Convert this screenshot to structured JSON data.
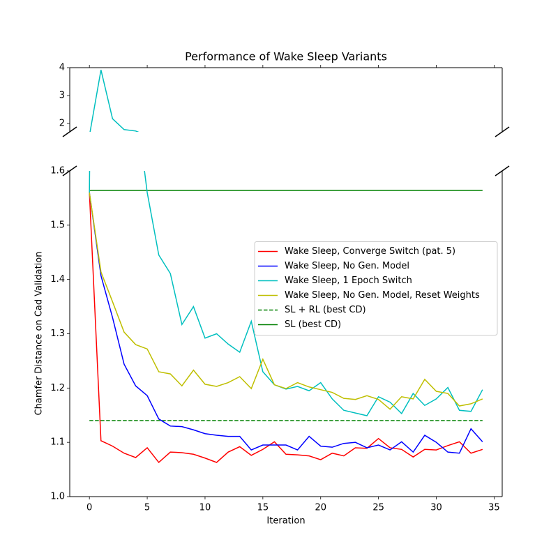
{
  "chart_data": {
    "type": "line",
    "title": "Performance of Wake Sleep Variants",
    "xlabel": "Iteration",
    "ylabel": "Chamfer Distance on Cad Validation",
    "x": [
      0,
      1,
      2,
      3,
      4,
      5,
      6,
      7,
      8,
      9,
      10,
      11,
      12,
      13,
      14,
      15,
      16,
      17,
      18,
      19,
      20,
      21,
      22,
      23,
      24,
      25,
      26,
      27,
      28,
      29,
      30,
      31,
      32,
      33,
      34
    ],
    "xlim": [
      -1.7,
      35.7
    ],
    "xticks": [
      0,
      5,
      10,
      15,
      20,
      25,
      30,
      35
    ],
    "panels": [
      {
        "ylim": [
          1.7,
          4
        ],
        "yticks": [
          2,
          3,
          4
        ]
      },
      {
        "ylim": [
          1.0,
          1.6
        ],
        "yticks": [
          {
            "value": 1.0,
            "label": "1.0"
          },
          1.1,
          1.2,
          1.3,
          1.4,
          1.5,
          1.6
        ]
      }
    ],
    "legend": "center right",
    "series": [
      {
        "name": "Wake Sleep, Converge Switch (pat. 5)",
        "color": "#ff0000",
        "values": [
          1.56,
          1.103,
          1.093,
          1.08,
          1.072,
          1.09,
          1.063,
          1.082,
          1.081,
          1.078,
          1.071,
          1.063,
          1.082,
          1.092,
          1.076,
          1.087,
          1.101,
          1.078,
          1.077,
          1.075,
          1.068,
          1.08,
          1.075,
          1.09,
          1.089,
          1.107,
          1.09,
          1.087,
          1.073,
          1.087,
          1.086,
          1.094,
          1.101,
          1.08,
          1.087
        ]
      },
      {
        "name": "Wake Sleep, No Gen. Model",
        "color": "#0000ff",
        "values": [
          1.56,
          1.407,
          1.33,
          1.244,
          1.204,
          1.186,
          1.143,
          1.13,
          1.129,
          1.123,
          1.116,
          1.113,
          1.111,
          1.111,
          1.086,
          1.095,
          1.095,
          1.095,
          1.086,
          1.111,
          1.093,
          1.091,
          1.098,
          1.1,
          1.09,
          1.095,
          1.086,
          1.101,
          1.082,
          1.113,
          1.1,
          1.082,
          1.08,
          1.125,
          1.101
        ]
      },
      {
        "name": "Wake Sleep, 1 Epoch Switch",
        "color": "#00bfbf",
        "values": [
          1.56,
          3.92,
          2.17,
          1.78,
          1.73,
          1.56,
          1.445,
          1.411,
          1.317,
          1.35,
          1.292,
          1.3,
          1.281,
          1.266,
          1.323,
          1.23,
          1.206,
          1.198,
          1.203,
          1.195,
          1.21,
          1.18,
          1.159,
          1.154,
          1.149,
          1.184,
          1.174,
          1.153,
          1.19,
          1.168,
          1.18,
          1.201,
          1.159,
          1.157,
          1.197
        ]
      },
      {
        "name": "Wake Sleep, No Gen. Model, Reset Weights",
        "color": "#bfbf00",
        "values": [
          1.56,
          1.414,
          1.359,
          1.303,
          1.28,
          1.272,
          1.23,
          1.226,
          1.204,
          1.233,
          1.207,
          1.203,
          1.21,
          1.221,
          1.199,
          1.253,
          1.206,
          1.199,
          1.21,
          1.202,
          1.197,
          1.192,
          1.181,
          1.179,
          1.186,
          1.179,
          1.161,
          1.184,
          1.18,
          1.216,
          1.194,
          1.19,
          1.167,
          1.171,
          1.18
        ]
      }
    ],
    "hlines": [
      {
        "name": "SL + RL (best CD)",
        "color": "#008000",
        "style": "dashed",
        "y": 1.14,
        "xmin": 0,
        "xmax": 34
      },
      {
        "name": "SL (best CD)",
        "color": "#008000",
        "style": "solid",
        "y": 1.564,
        "xmin": 0,
        "xmax": 34
      }
    ]
  }
}
